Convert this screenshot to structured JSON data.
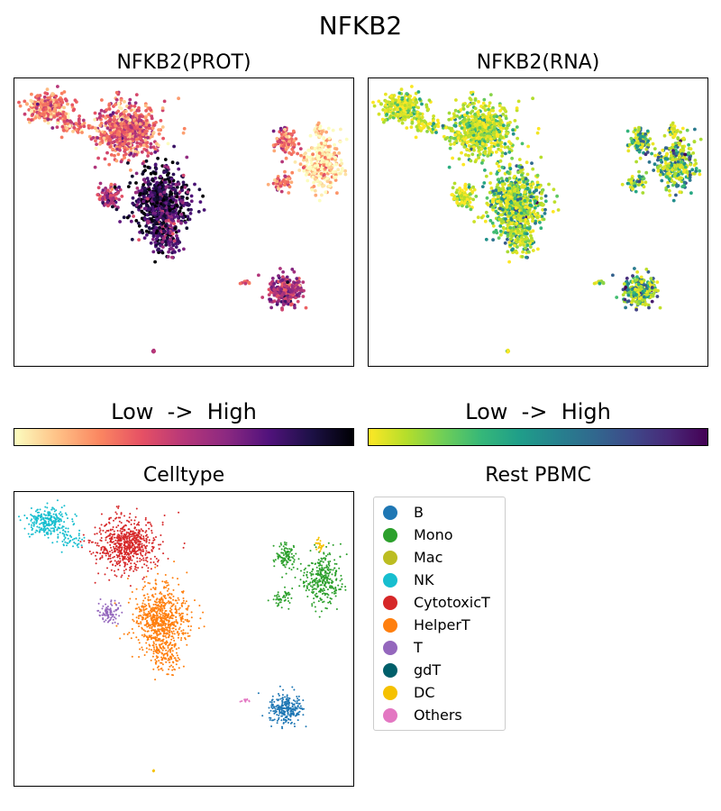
{
  "title": "NFKB2",
  "chart_data": [
    {
      "type": "scatter",
      "title": "NFKB2(PROT)",
      "xlabel": "",
      "ylabel": "",
      "colormap": "magma_r",
      "colorbar_label": "Low  ->  High",
      "colors": [
        "#fcfdbf",
        "#fec287",
        "#fb8761",
        "#e65164",
        "#b73779",
        "#8c2981",
        "#51127c",
        "#1d1147",
        "#000004"
      ]
    },
    {
      "type": "scatter",
      "title": "NFKB2(RNA)",
      "xlabel": "",
      "ylabel": "",
      "colormap": "viridis_r",
      "colorbar_label": "Low  ->  High",
      "colors": [
        "#fde725",
        "#b5de2b",
        "#6ece58",
        "#35b779",
        "#1f9e89",
        "#26828e",
        "#31688e",
        "#3e4989",
        "#482878",
        "#440154"
      ]
    },
    {
      "type": "scatter",
      "title": "Celltype",
      "legend_title": "Rest PBMC",
      "legend": [
        {
          "label": "B",
          "color": "#1f77b4"
        },
        {
          "label": "Mono",
          "color": "#2ca02c"
        },
        {
          "label": "Mac",
          "color": "#bcbd22"
        },
        {
          "label": "NK",
          "color": "#17becf"
        },
        {
          "label": "CytotoxicT",
          "color": "#d62728"
        },
        {
          "label": "HelperT",
          "color": "#ff7f0e"
        },
        {
          "label": "T",
          "color": "#9467bd"
        },
        {
          "label": "gdT",
          "color": "#005f6a"
        },
        {
          "label": "DC",
          "color": "#f5c100"
        },
        {
          "label": "Others",
          "color": "#e377c2"
        }
      ]
    }
  ]
}
